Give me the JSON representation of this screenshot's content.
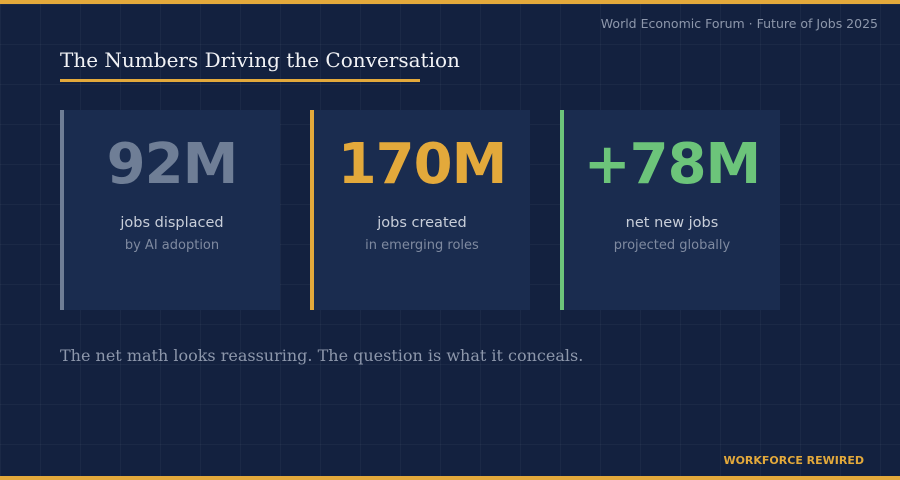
{
  "header": {
    "source": "World Economic Forum · Future of Jobs 2025",
    "title": "The Numbers Driving the Conversation"
  },
  "stats": [
    {
      "value": "92M",
      "label": "jobs displaced",
      "sublabel": "by AI adoption"
    },
    {
      "value": "170M",
      "label": "jobs created",
      "sublabel": "in emerging roles"
    },
    {
      "value": "+78M",
      "label": "net new jobs",
      "sublabel": "projected globally"
    }
  ],
  "note": "The net math looks reassuring. The question is what it conceals.",
  "footer": {
    "brand": "WORKFORCE REWIRED"
  }
}
